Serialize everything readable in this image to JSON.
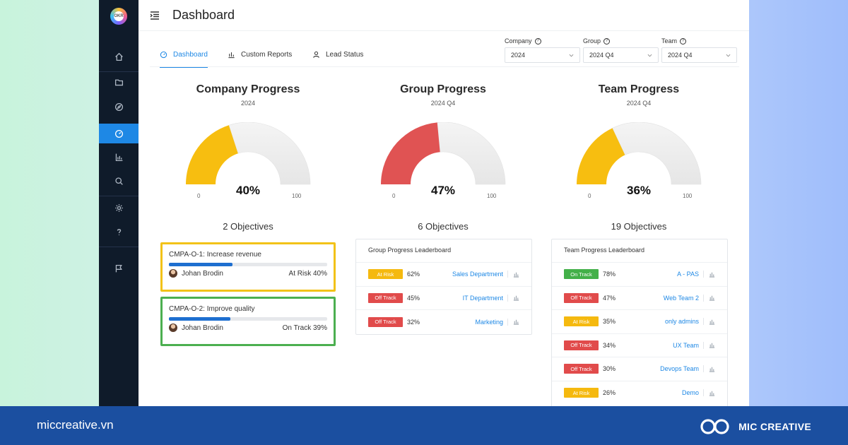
{
  "app": {
    "title": "Dashboard",
    "logo_text": "OKR"
  },
  "sidebar": {
    "items": [
      {
        "icon": "home-icon"
      },
      {
        "icon": "folder-icon"
      },
      {
        "icon": "compass-icon"
      },
      {
        "icon": "dashboard-icon",
        "active": true
      },
      {
        "icon": "chart-icon"
      },
      {
        "icon": "search-icon"
      },
      {
        "icon": "gear-icon"
      },
      {
        "icon": "help-icon"
      },
      {
        "icon": "flag-icon"
      }
    ]
  },
  "tabs": [
    {
      "label": "Dashboard",
      "icon": "dashboard-icon",
      "active": true
    },
    {
      "label": "Custom Reports",
      "icon": "bar-chart-icon"
    },
    {
      "label": "Lead Status",
      "icon": "user-icon"
    }
  ],
  "filters": [
    {
      "label": "Company",
      "value": "2024"
    },
    {
      "label": "Group",
      "value": "2024 Q4"
    },
    {
      "label": "Team",
      "value": "2024 Q4"
    }
  ],
  "panels": [
    {
      "title": "Company Progress",
      "subtitle": "2024",
      "progress": 40,
      "progress_label": "40%",
      "min": "0",
      "max": "100",
      "color": "#f7be10",
      "objectives": "2 Objectives"
    },
    {
      "title": "Group Progress",
      "subtitle": "2024 Q4",
      "progress": 47,
      "progress_label": "47%",
      "min": "0",
      "max": "100",
      "color": "#e05353",
      "objectives": "6 Objectives"
    },
    {
      "title": "Team Progress",
      "subtitle": "2024 Q4",
      "progress": 36,
      "progress_label": "36%",
      "min": "0",
      "max": "100",
      "color": "#f7be10",
      "objectives": "19 Objectives"
    }
  ],
  "company_objectives": [
    {
      "title": "CMPA-O-1: Increase revenue",
      "owner": "Johan Brodin",
      "status": "At Risk 40%",
      "progress": 0.4,
      "border": "#f2c218"
    },
    {
      "title": "CMPA-O-2: Improve quality",
      "owner": "Johan Brodin",
      "status": "On Track 39%",
      "progress": 0.39,
      "border": "#4caf50"
    }
  ],
  "group_board": {
    "title": "Group Progress Leaderboard",
    "rows": [
      {
        "status": "At Risk",
        "kind": "risk",
        "pct": "62%",
        "name": "Sales Department"
      },
      {
        "status": "Off Track",
        "kind": "off",
        "pct": "45%",
        "name": "IT Department"
      },
      {
        "status": "Off Track",
        "kind": "off",
        "pct": "32%",
        "name": "Marketing"
      }
    ]
  },
  "team_board": {
    "title": "Team Progress Leaderboard",
    "rows": [
      {
        "status": "On Track",
        "kind": "on",
        "pct": "78%",
        "name": "A - PAS"
      },
      {
        "status": "Off Track",
        "kind": "off",
        "pct": "47%",
        "name": "Web Team 2"
      },
      {
        "status": "At Risk",
        "kind": "risk",
        "pct": "35%",
        "name": "only admins"
      },
      {
        "status": "Off Track",
        "kind": "off",
        "pct": "34%",
        "name": "UX Team"
      },
      {
        "status": "Off Track",
        "kind": "off",
        "pct": "30%",
        "name": "Devops Team"
      },
      {
        "status": "At Risk",
        "kind": "risk",
        "pct": "26%",
        "name": "Demo"
      }
    ]
  },
  "footer": {
    "url": "miccreative.vn",
    "brand": "MIC CREATIVE"
  }
}
